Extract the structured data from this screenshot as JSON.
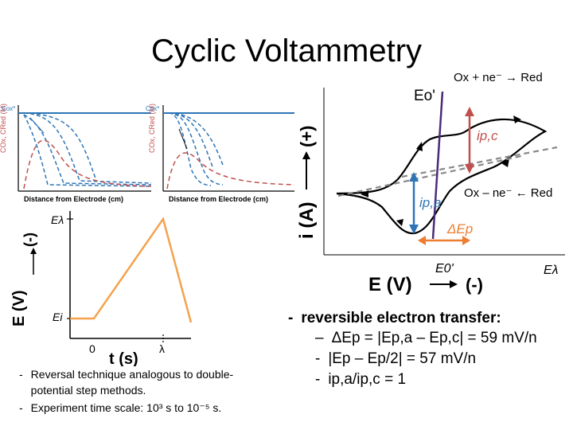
{
  "title": "Cyclic Voltammetry",
  "cv": {
    "eq_ox": "Ox + ne⁻ → Red",
    "eq_red": "Ox – ne⁻ ← Red",
    "e0_top": "Eo'",
    "ipc_label": "ip,c",
    "ipa_label": "ip,a",
    "dEp_label": "ΔEp",
    "y_label": "i (A)",
    "y_plus": "(+)",
    "x_label": "E (V)",
    "x_minus": "(-)",
    "e0_tick": "E0'",
    "elambda_tick": "Eλ",
    "colors": {
      "curve": "#000000",
      "ipc": "#c0504d",
      "ipa": "#2e75b6",
      "dEp": "#ed7d31",
      "e0line": "#4b2c7a"
    }
  },
  "conc_plots": {
    "y_label": "COx, CRed (M)",
    "cox_star": "Cox*",
    "x_label": "Distance from Electrode (cm)"
  },
  "waveform": {
    "y_label": "E (V)",
    "y_minus": "(-)",
    "elambda": "Eλ",
    "ei": "Ei",
    "x_label": "t (s)",
    "x_zero": "0",
    "x_lambda": "λ",
    "color": "#f4a24e"
  },
  "bullets_left": [
    "Reversal technique analogous to double-potential step methods.",
    "Experiment time scale: 10³ s to 10⁻⁵ s."
  ],
  "bullets_right": {
    "main": "reversible electron transfer:",
    "sub": [
      "ΔEp = |Ep,a – Ep,c| = 59 mV/n",
      "|Ep – Ep/2| = 57 mV/n",
      "ip,a/ip,c = 1"
    ]
  }
}
